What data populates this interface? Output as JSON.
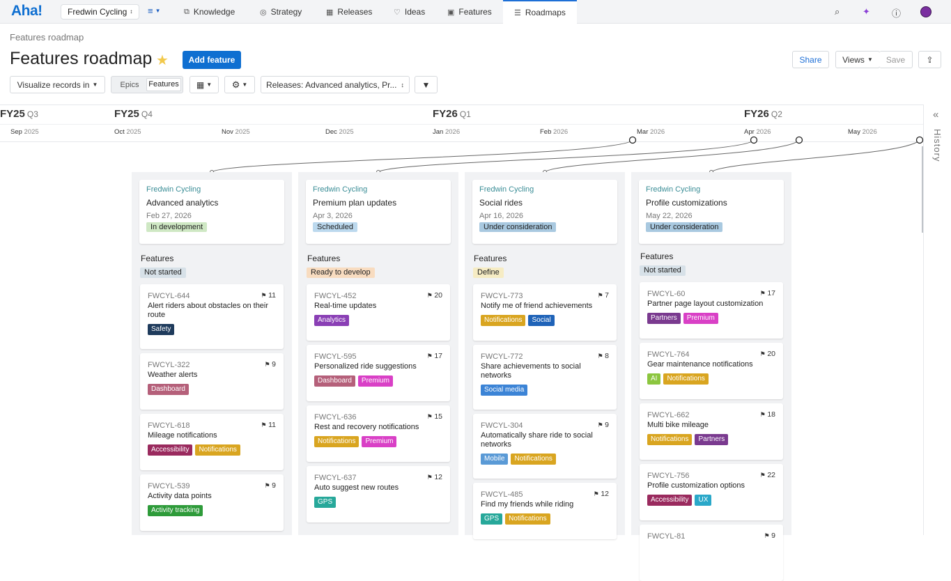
{
  "nav": {
    "logo": "Aha!",
    "workspace": "Fredwin Cycling",
    "tabs": [
      {
        "label": "Knowledge",
        "icon": "knowledge-icon"
      },
      {
        "label": "Strategy",
        "icon": "strategy-icon"
      },
      {
        "label": "Releases",
        "icon": "releases-icon"
      },
      {
        "label": "Ideas",
        "icon": "ideas-icon"
      },
      {
        "label": "Features",
        "icon": "features-icon"
      },
      {
        "label": "Roadmaps",
        "icon": "roadmaps-icon"
      }
    ],
    "active_tab": "Roadmaps"
  },
  "header": {
    "breadcrumb": "Features roadmap",
    "title": "Features roadmap",
    "add_button": "Add feature",
    "share": "Share",
    "views": "Views",
    "save": "Save"
  },
  "toolbar": {
    "visualize": "Visualize records in",
    "seg_epics": "Epics",
    "seg_features": "Features",
    "releases_filter": "Releases: Advanced analytics, Pr..."
  },
  "timeline": {
    "fiscal": [
      {
        "fy": "FY25",
        "q": "Q3"
      },
      {
        "fy": "FY25",
        "q": "Q4"
      },
      {
        "fy": "FY26",
        "q": "Q1"
      },
      {
        "fy": "FY26",
        "q": "Q2"
      }
    ],
    "months": [
      {
        "m": "Sep",
        "y": "2025"
      },
      {
        "m": "Oct",
        "y": "2025"
      },
      {
        "m": "Nov",
        "y": "2025"
      },
      {
        "m": "Dec",
        "y": "2025"
      },
      {
        "m": "Jan",
        "y": "2026"
      },
      {
        "m": "Feb",
        "y": "2026"
      },
      {
        "m": "Mar",
        "y": "2026"
      },
      {
        "m": "Apr",
        "y": "2026"
      },
      {
        "m": "May",
        "y": "2026"
      }
    ]
  },
  "history_label": "History",
  "features_heading": "Features",
  "columns": [
    {
      "workspace": "Fredwin Cycling",
      "name": "Advanced analytics",
      "date": "Feb 27, 2026",
      "status": "In development",
      "status_bg": "#cfe8c4",
      "feature_status": "Not started",
      "feature_status_bg": "#d7e1e8",
      "cards": [
        {
          "id": "FWCYL-644",
          "count": "11",
          "name": "Alert riders about obstacles on their route",
          "tags": [
            {
              "t": "Safety",
              "c": "#1f3b5c"
            }
          ]
        },
        {
          "id": "FWCYL-322",
          "count": "9",
          "name": "Weather alerts",
          "tags": [
            {
              "t": "Dashboard",
              "c": "#b5607a"
            }
          ]
        },
        {
          "id": "FWCYL-618",
          "count": "11",
          "name": "Mileage notifications",
          "tags": [
            {
              "t": "Accessibility",
              "c": "#9a2a5e"
            },
            {
              "t": "Notifications",
              "c": "#d9a520"
            }
          ]
        },
        {
          "id": "FWCYL-539",
          "count": "9",
          "name": "Activity data points",
          "tags": [
            {
              "t": "Activity tracking",
              "c": "#2e9b3a"
            }
          ]
        }
      ]
    },
    {
      "workspace": "Fredwin Cycling",
      "name": "Premium plan updates",
      "date": "Apr 3, 2026",
      "status": "Scheduled",
      "status_bg": "#bcd9ee",
      "feature_status": "Ready to develop",
      "feature_status_bg": "#f8dcc0",
      "cards": [
        {
          "id": "FWCYL-452",
          "count": "20",
          "name": "Real-time updates",
          "tags": [
            {
              "t": "Analytics",
              "c": "#8a3fb5"
            }
          ]
        },
        {
          "id": "FWCYL-595",
          "count": "17",
          "name": "Personalized ride suggestions",
          "tags": [
            {
              "t": "Dashboard",
              "c": "#b5607a"
            },
            {
              "t": "Premium",
              "c": "#d940c6"
            }
          ]
        },
        {
          "id": "FWCYL-636",
          "count": "15",
          "name": "Rest and recovery notifications",
          "tags": [
            {
              "t": "Notifications",
              "c": "#d9a520"
            },
            {
              "t": "Premium",
              "c": "#d940c6"
            }
          ]
        },
        {
          "id": "FWCYL-637",
          "count": "12",
          "name": "Auto suggest new routes",
          "tags": [
            {
              "t": "GPS",
              "c": "#27a89a"
            }
          ]
        }
      ]
    },
    {
      "workspace": "Fredwin Cycling",
      "name": "Social rides",
      "date": "Apr 16, 2026",
      "status": "Under consideration",
      "status_bg": "#a9c9e0",
      "feature_status": "Define",
      "feature_status_bg": "#f6ecc4",
      "cards": [
        {
          "id": "FWCYL-773",
          "count": "7",
          "name": "Notify me of friend achievements",
          "tags": [
            {
              "t": "Notifications",
              "c": "#d9a520"
            },
            {
              "t": "Social",
              "c": "#1f63b8"
            }
          ]
        },
        {
          "id": "FWCYL-772",
          "count": "8",
          "name": "Share achievements to social networks",
          "tags": [
            {
              "t": "Social media",
              "c": "#3c84d6"
            }
          ]
        },
        {
          "id": "FWCYL-304",
          "count": "9",
          "name": "Automatically share ride to social networks",
          "tags": [
            {
              "t": "Mobile",
              "c": "#5a9ad6"
            },
            {
              "t": "Notifications",
              "c": "#d9a520"
            }
          ]
        },
        {
          "id": "FWCYL-485",
          "count": "12",
          "name": "Find my friends while riding",
          "tags": [
            {
              "t": "GPS",
              "c": "#27a89a"
            },
            {
              "t": "Notifications",
              "c": "#d9a520"
            }
          ]
        }
      ]
    },
    {
      "workspace": "Fredwin Cycling",
      "name": "Profile customizations",
      "date": "May 22, 2026",
      "status": "Under consideration",
      "status_bg": "#a9c9e0",
      "feature_status": "Not started",
      "feature_status_bg": "#d7e1e8",
      "cards": [
        {
          "id": "FWCYL-60",
          "count": "17",
          "name": "Partner page layout customization",
          "tags": [
            {
              "t": "Partners",
              "c": "#7a3a8f"
            },
            {
              "t": "Premium",
              "c": "#d940c6"
            }
          ]
        },
        {
          "id": "FWCYL-764",
          "count": "20",
          "name": "Gear maintenance notifications",
          "tags": [
            {
              "t": "AI",
              "c": "#8cc63f"
            },
            {
              "t": "Notifications",
              "c": "#d9a520"
            }
          ]
        },
        {
          "id": "FWCYL-662",
          "count": "18",
          "name": "Multi bike mileage",
          "tags": [
            {
              "t": "Notifications",
              "c": "#d9a520"
            },
            {
              "t": "Partners",
              "c": "#7a3a8f"
            }
          ]
        },
        {
          "id": "FWCYL-756",
          "count": "22",
          "name": "Profile customization options",
          "tags": [
            {
              "t": "Accessibility",
              "c": "#9a2a5e"
            },
            {
              "t": "UX",
              "c": "#2aa8c9"
            }
          ]
        },
        {
          "id": "FWCYL-81",
          "count": "9",
          "name": "",
          "tags": []
        }
      ]
    }
  ]
}
